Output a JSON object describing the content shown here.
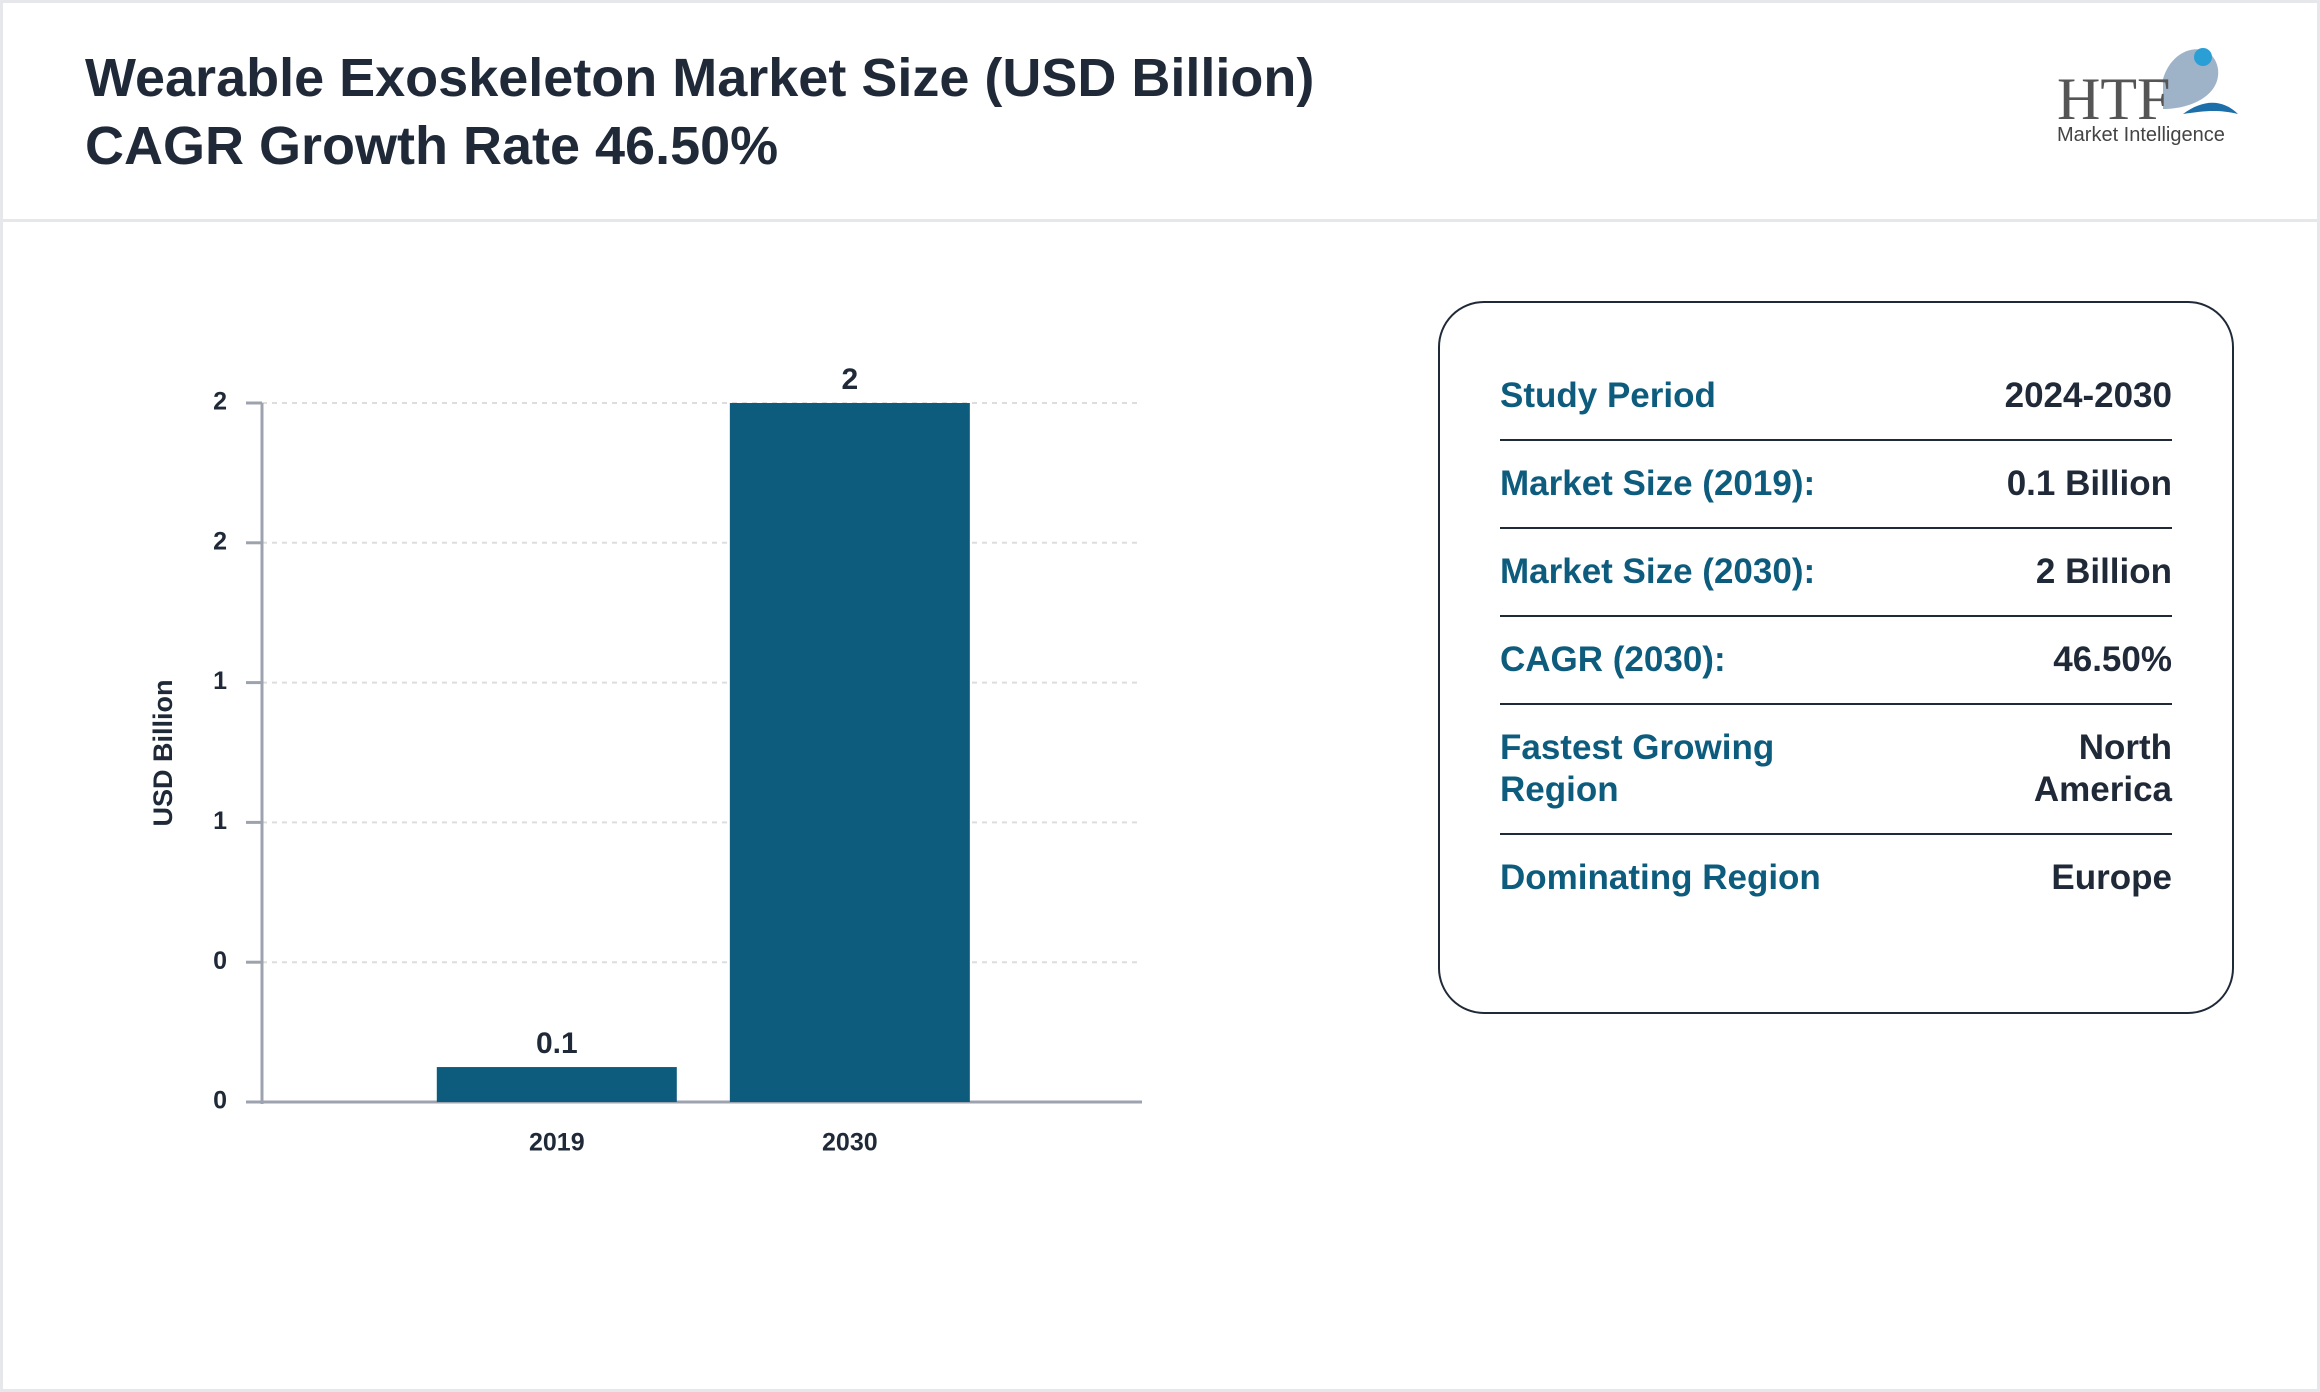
{
  "chart_data": {
    "type": "bar",
    "title": "Wearable Exoskeleton Market Size (USD Billion)",
    "subtitle": "CAGR Growth Rate 46.50%",
    "y_label": "USD Billion",
    "categories": [
      "2019",
      "2030"
    ],
    "values": [
      0.1,
      2
    ],
    "color": "#0d5c7d",
    "ylim": [
      0,
      2
    ],
    "yticks": [
      0,
      {
        "value": 0.4,
        "label": "0"
      },
      {
        "value": 0.8,
        "label": "1"
      },
      {
        "value": 1.2,
        "label": "1"
      },
      {
        "value": 1.6,
        "label": "2"
      },
      2
    ],
    "grid": true
  },
  "info_table": {
    "rows": [
      {
        "label": "Study Period",
        "value": "2024-2030"
      },
      {
        "label": "Market Size (2019):",
        "value": "0.1 Billion"
      },
      {
        "label": "Market Size (2030):",
        "value": "2 Billion"
      },
      {
        "label": "CAGR (2030):",
        "value": "46.50%"
      },
      {
        "label": "Fastest Growing Region",
        "value": "North America"
      },
      {
        "label": "Dominating Region",
        "value": "Europe"
      }
    ]
  },
  "logo": {
    "brand": "HTF",
    "tagline": "Market Intelligence"
  }
}
